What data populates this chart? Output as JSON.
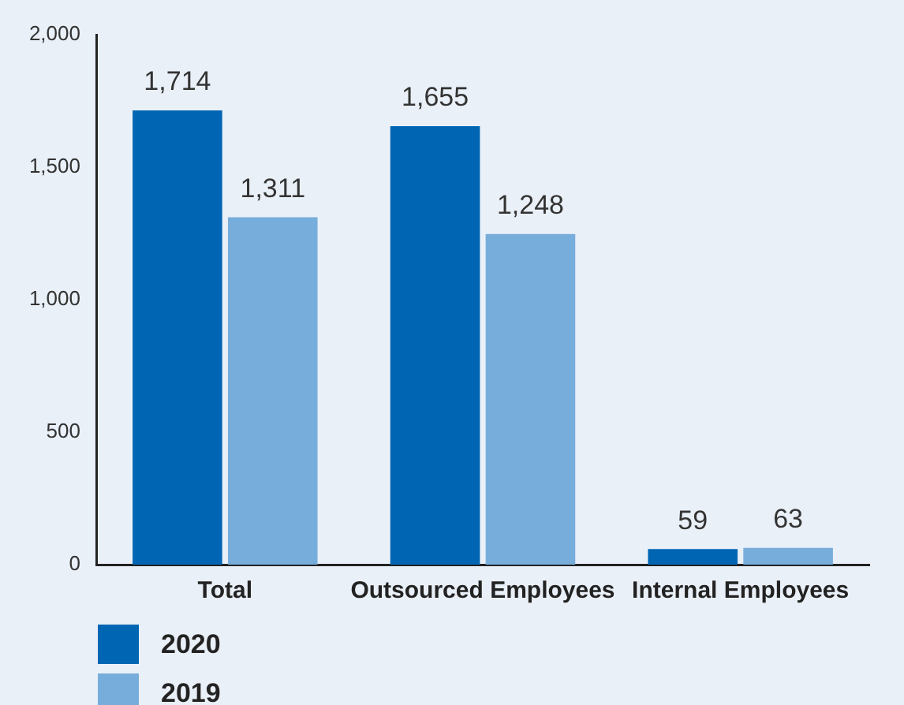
{
  "chart_data": {
    "type": "bar",
    "categories": [
      "Total",
      "Outsourced Employees",
      "Internal Employees"
    ],
    "series": [
      {
        "name": "2020",
        "color": "#0066b3",
        "values": [
          1714,
          1655,
          59
        ],
        "value_labels": [
          "1,714",
          "1,655",
          "59"
        ]
      },
      {
        "name": "2019",
        "color": "#77addb",
        "values": [
          1311,
          1248,
          63
        ],
        "value_labels": [
          "1,311",
          "1,248",
          "63"
        ]
      }
    ],
    "ylim": [
      0,
      2000
    ],
    "yticks": [
      {
        "value": 0,
        "label": "0"
      },
      {
        "value": 500,
        "label": "500"
      },
      {
        "value": 1000,
        "label": "1,000"
      },
      {
        "value": 1500,
        "label": "1,500"
      },
      {
        "value": 2000,
        "label": "2,000"
      }
    ],
    "grid": false,
    "legend": "bottom left"
  }
}
